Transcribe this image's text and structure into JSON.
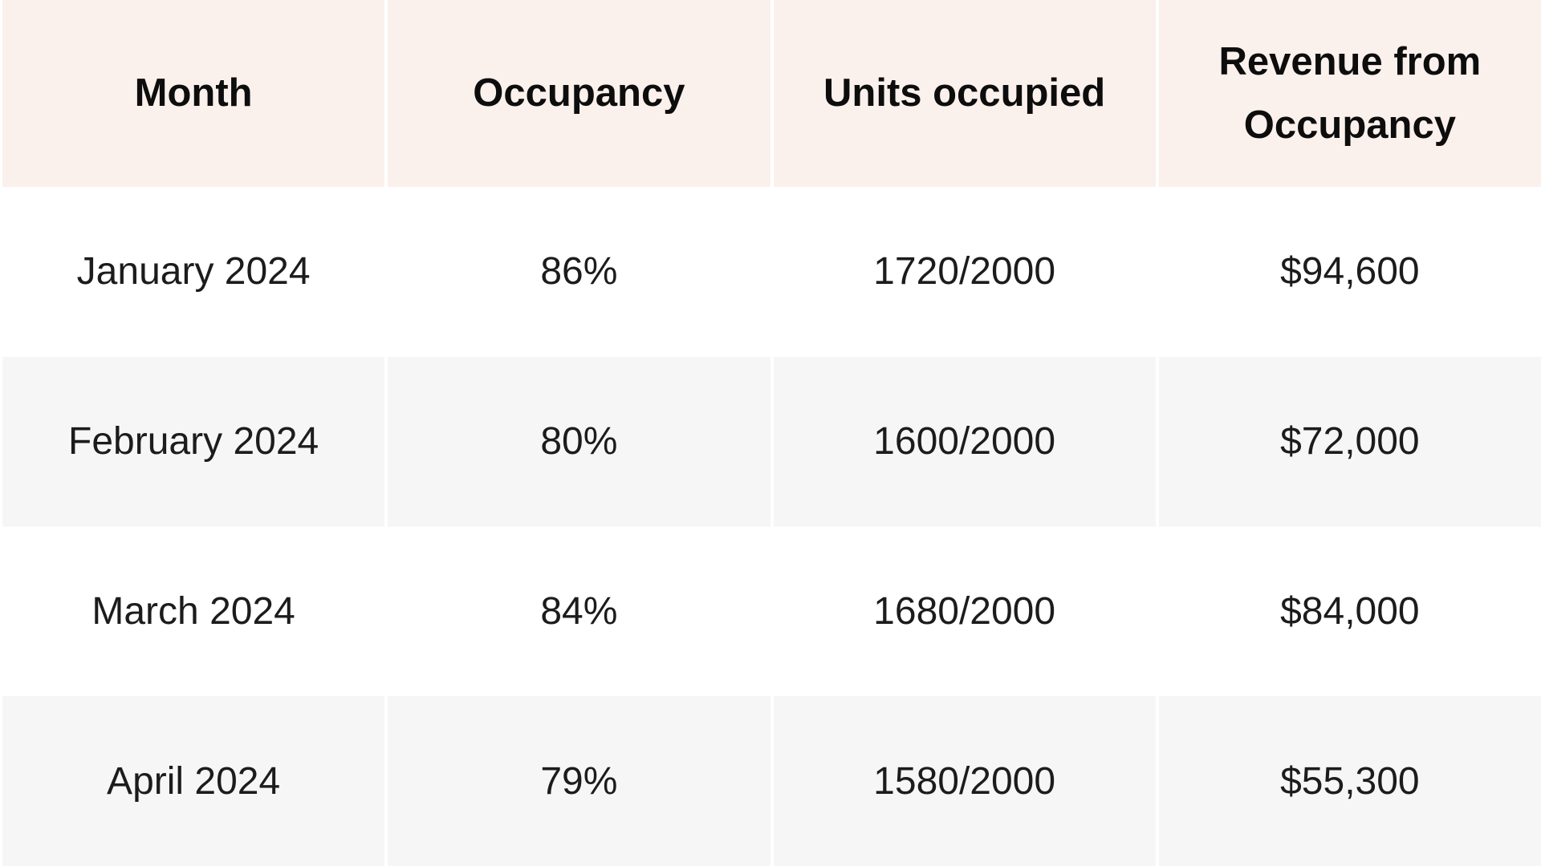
{
  "colors": {
    "header_bg": "#FAF0EC",
    "row_white_bg": "#FFFFFF",
    "row_gray_bg": "#F6F6F6",
    "separator": "#FFFFFF",
    "header_text": "#0D0D0D",
    "body_text": "#1C1C1C"
  },
  "table": {
    "headers": [
      "Month",
      "Occupancy",
      "Units occupied",
      "Revenue from Occupancy"
    ],
    "rows": [
      [
        "January 2024",
        "86%",
        "1720/2000",
        "$94,600"
      ],
      [
        "February 2024",
        "80%",
        "1600/2000",
        "$72,000"
      ],
      [
        "March 2024",
        "84%",
        "1680/2000",
        "$84,000"
      ],
      [
        "April 2024",
        "79%",
        "1580/2000",
        "$55,300"
      ]
    ]
  },
  "chart_data": {
    "type": "table",
    "title": "",
    "columns": [
      "Month",
      "Occupancy",
      "Units occupied",
      "Revenue from Occupancy"
    ],
    "rows": [
      {
        "month": "January 2024",
        "occupancy_pct": 86,
        "units_occupied": 1720,
        "units_total": 2000,
        "units_label": "1720/2000",
        "revenue_label": "$94,600",
        "revenue_usd": 94600
      },
      {
        "month": "February 2024",
        "occupancy_pct": 80,
        "units_occupied": 1600,
        "units_total": 2000,
        "units_label": "1600/2000",
        "revenue_label": "$72,000",
        "revenue_usd": 72000
      },
      {
        "month": "March 2024",
        "occupancy_pct": 84,
        "units_occupied": 1680,
        "units_total": 2000,
        "units_label": "1680/2000",
        "revenue_label": "$84,000",
        "revenue_usd": 84000
      },
      {
        "month": "April 2024",
        "occupancy_pct": 79,
        "units_occupied": 1580,
        "units_total": 2000,
        "units_label": "1580/2000",
        "revenue_label": "$55,300",
        "revenue_usd": 55300
      }
    ],
    "layout": {
      "header_background": "#FAF0EC",
      "alternating_row_backgrounds": [
        "#FFFFFF",
        "#F6F6F6"
      ],
      "column_separator": "white vertical gaps",
      "grid": "off"
    }
  }
}
